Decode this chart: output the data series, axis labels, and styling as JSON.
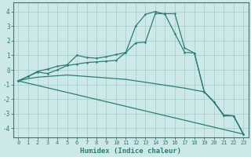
{
  "xlabel": "Humidex (Indice chaleur)",
  "background_color": "#cce8e8",
  "grid_color": "#aacfcf",
  "line_color": "#2e7d72",
  "xlim": [
    -0.5,
    23.5
  ],
  "ylim": [
    -4.6,
    4.6
  ],
  "xticks": [
    0,
    1,
    2,
    3,
    4,
    5,
    6,
    7,
    8,
    9,
    10,
    11,
    12,
    13,
    14,
    15,
    16,
    17,
    18,
    19,
    20,
    21,
    22,
    23
  ],
  "yticks": [
    -4,
    -3,
    -2,
    -1,
    0,
    1,
    2,
    3,
    4
  ],
  "line1": {
    "x": [
      0,
      1,
      2,
      3,
      4,
      5,
      6,
      7,
      8,
      9,
      10,
      11,
      12,
      13,
      14,
      15,
      16,
      17,
      18,
      19,
      20,
      21,
      22,
      23
    ],
    "y": [
      -0.75,
      -0.45,
      -0.1,
      0.05,
      0.25,
      0.35,
      1.0,
      0.85,
      0.8,
      0.9,
      1.05,
      1.2,
      3.0,
      3.8,
      4.0,
      3.8,
      2.5,
      1.2,
      1.15,
      -1.5,
      -2.2,
      -3.1,
      -3.15,
      -4.4
    ]
  },
  "line2": {
    "x": [
      0,
      1,
      2,
      3,
      4,
      5,
      6,
      7,
      8,
      9,
      10,
      11,
      12,
      13,
      14,
      15,
      16,
      17,
      18,
      19,
      20,
      21,
      22,
      23
    ],
    "y": [
      -0.75,
      -0.45,
      -0.15,
      -0.25,
      0.0,
      0.3,
      0.4,
      0.5,
      0.55,
      0.6,
      0.65,
      1.2,
      1.85,
      1.9,
      3.85,
      3.85,
      3.85,
      1.5,
      1.15,
      -1.5,
      -2.2,
      -3.1,
      -3.15,
      -4.4
    ]
  },
  "line3": {
    "x": [
      0,
      1,
      2,
      3,
      4,
      5,
      6,
      7,
      8,
      9,
      10,
      11,
      12,
      13,
      14,
      15,
      16,
      17,
      18,
      19,
      20,
      21,
      22,
      23
    ],
    "y": [
      -0.75,
      -0.6,
      -0.5,
      -0.45,
      -0.4,
      -0.35,
      -0.4,
      -0.45,
      -0.5,
      -0.55,
      -0.6,
      -0.65,
      -0.75,
      -0.85,
      -0.95,
      -1.05,
      -1.15,
      -1.25,
      -1.38,
      -1.5,
      -2.2,
      -3.15,
      -3.15,
      -4.4
    ]
  },
  "line4": {
    "x": [
      0,
      23
    ],
    "y": [
      -0.75,
      -4.4
    ]
  }
}
